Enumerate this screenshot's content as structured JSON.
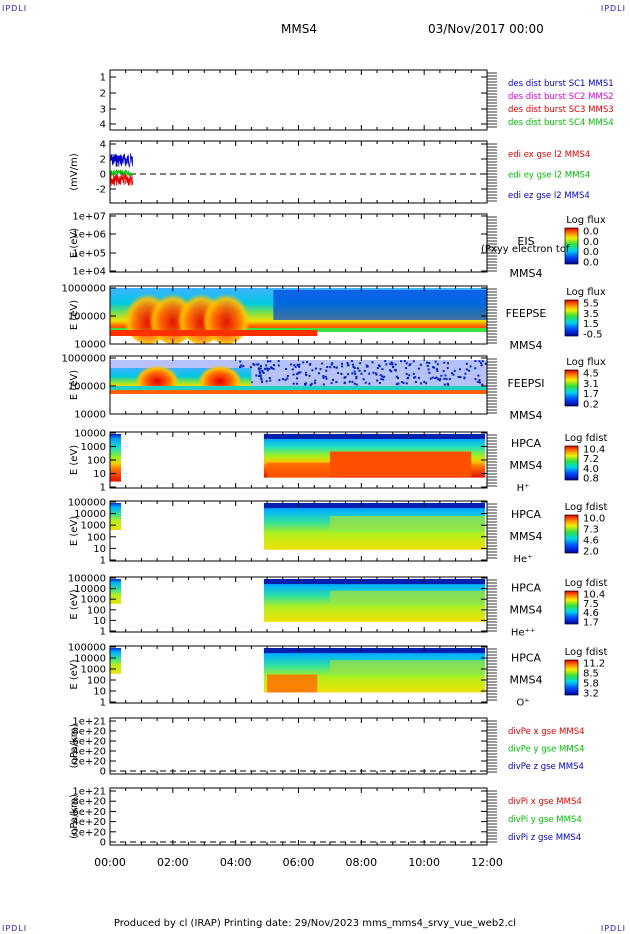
{
  "header": {
    "corner_label": "IPDLI",
    "spacecraft": "MMS4",
    "datetime": "03/Nov/2017 00:00"
  },
  "footer": {
    "text": "Produced by cl (IRAP)   Printing date: 29/Nov/2023   mms_mms4_srvy_vue_web2.cl"
  },
  "colors": {
    "sc1": "#0000c0",
    "sc2": "#e000e0",
    "sc3": "#e00000",
    "sc4": "#00c000",
    "ex": "#e00000",
    "ey": "#00c000",
    "ez": "#0000c0"
  },
  "chart_data": [
    {
      "type": "line",
      "title": "",
      "ylabel": "",
      "ylim": [
        0.6,
        4.6
      ],
      "yticks": [
        "1",
        "2",
        "3",
        "4"
      ],
      "legend": [
        "des dist burst SC1 MMS1",
        "des dist burst SC2 MMS2",
        "des dist burst SC3 MMS3",
        "des dist burst SC4 MMS4"
      ],
      "series": []
    },
    {
      "type": "line",
      "ylabel": "(mV/m)",
      "ylim": [
        -4,
        4
      ],
      "yticks": [
        "4",
        "2",
        "0",
        "-2"
      ],
      "legend": [
        "edi ex gse l2 MMS4",
        "edi ey gse l2 MMS4",
        "edi ez gse l2 MMS4"
      ],
      "data_interval_hours": [
        0,
        0.75
      ],
      "reference_line": 0
    },
    {
      "type": "heatmap",
      "ylabel": "E (eV)",
      "yticks": [
        "1e+07",
        "1e+06",
        "1e+05",
        "1e+04"
      ],
      "instrument": "EIS",
      "instrument_extra": "(Pxyy electron tof",
      "sc": "MMS4",
      "colorbar_title": "Log flux",
      "colorbar_ticks": [
        "0.0",
        "0.0",
        "0.0",
        "0.0"
      ],
      "data_interval_hours": []
    },
    {
      "type": "heatmap",
      "ylabel": "E (eV)",
      "yticks": [
        "1000000",
        "100000",
        "10000"
      ],
      "instrument": "FEEPSE",
      "sc": "MMS4",
      "colorbar_title": "Log flux",
      "colorbar_ticks": [
        "5.5",
        "3.5",
        "1.5",
        "-0.5"
      ],
      "data_interval_hours": [
        0,
        12
      ]
    },
    {
      "type": "heatmap",
      "ylabel": "E (eV)",
      "yticks": [
        "1000000",
        "100000",
        "10000"
      ],
      "instrument": "FEEPSI",
      "sc": "MMS4",
      "colorbar_title": "Log flux",
      "colorbar_ticks": [
        "4.5",
        "3.1",
        "1.7",
        "0.2"
      ],
      "data_interval_hours": [
        0,
        12
      ]
    },
    {
      "type": "heatmap",
      "ylabel": "E (eV)",
      "yticks": [
        "10000",
        "1000",
        "100",
        "10",
        "1"
      ],
      "instrument": "HPCA",
      "sc": "MMS4",
      "species": "H⁺",
      "colorbar_title": "Log fdist",
      "colorbar_ticks": [
        "10.4",
        "7.2",
        "4.0",
        "0.8"
      ],
      "data_interval_hours": [
        [
          0,
          0.35
        ],
        [
          4.9,
          12
        ]
      ]
    },
    {
      "type": "heatmap",
      "ylabel": "E (eV)",
      "yticks": [
        "100000",
        "10000",
        "1000",
        "100",
        "10",
        "1"
      ],
      "instrument": "HPCA",
      "sc": "MMS4",
      "species": "He⁺",
      "colorbar_title": "Log fdist",
      "colorbar_ticks": [
        "10.0",
        "7.3",
        "4.6",
        "2.0"
      ],
      "data_interval_hours": [
        [
          0,
          0.35
        ],
        [
          4.9,
          12
        ]
      ]
    },
    {
      "type": "heatmap",
      "ylabel": "E (eV)",
      "yticks": [
        "100000",
        "10000",
        "1000",
        "100",
        "10",
        "1"
      ],
      "instrument": "HPCA",
      "sc": "MMS4",
      "species": "He⁺⁺",
      "colorbar_title": "Log fdist",
      "colorbar_ticks": [
        "10.4",
        "7.5",
        "4.6",
        "1.7"
      ],
      "data_interval_hours": [
        [
          0,
          0.35
        ],
        [
          4.9,
          12
        ]
      ]
    },
    {
      "type": "heatmap",
      "ylabel": "E (eV)",
      "yticks": [
        "100000",
        "10000",
        "1000",
        "100",
        "10",
        "1"
      ],
      "instrument": "HPCA",
      "sc": "MMS4",
      "species": "O⁺",
      "colorbar_title": "Log fdist",
      "colorbar_ticks": [
        "11.2",
        "8.5",
        "5.8",
        "3.2"
      ],
      "data_interval_hours": [
        [
          0,
          0.35
        ],
        [
          4.9,
          12
        ]
      ]
    },
    {
      "type": "line",
      "ylabel": "(nPa/km)",
      "yticks": [
        "1e+21",
        "8e+20",
        "6e+20",
        "4e+20",
        "2e+20",
        "0"
      ],
      "legend": [
        "divPe x gse MMS4",
        "divPe y gse MMS4",
        "divPe z gse MMS4"
      ],
      "reference_line": 0,
      "series": []
    },
    {
      "type": "line",
      "ylabel": "(nPa/km)",
      "yticks": [
        "1e+21",
        "8e+20",
        "6e+20",
        "4e+20",
        "2e+20",
        "0"
      ],
      "legend": [
        "divPi x gse MMS4",
        "divPi y gse MMS4",
        "divPi z gse MMS4"
      ],
      "reference_line": 0,
      "series": []
    }
  ],
  "xaxis": {
    "ticks": [
      "00:00",
      "02:00",
      "04:00",
      "06:00",
      "08:00",
      "10:00",
      "12:00"
    ],
    "range_hours": [
      0,
      12
    ]
  }
}
